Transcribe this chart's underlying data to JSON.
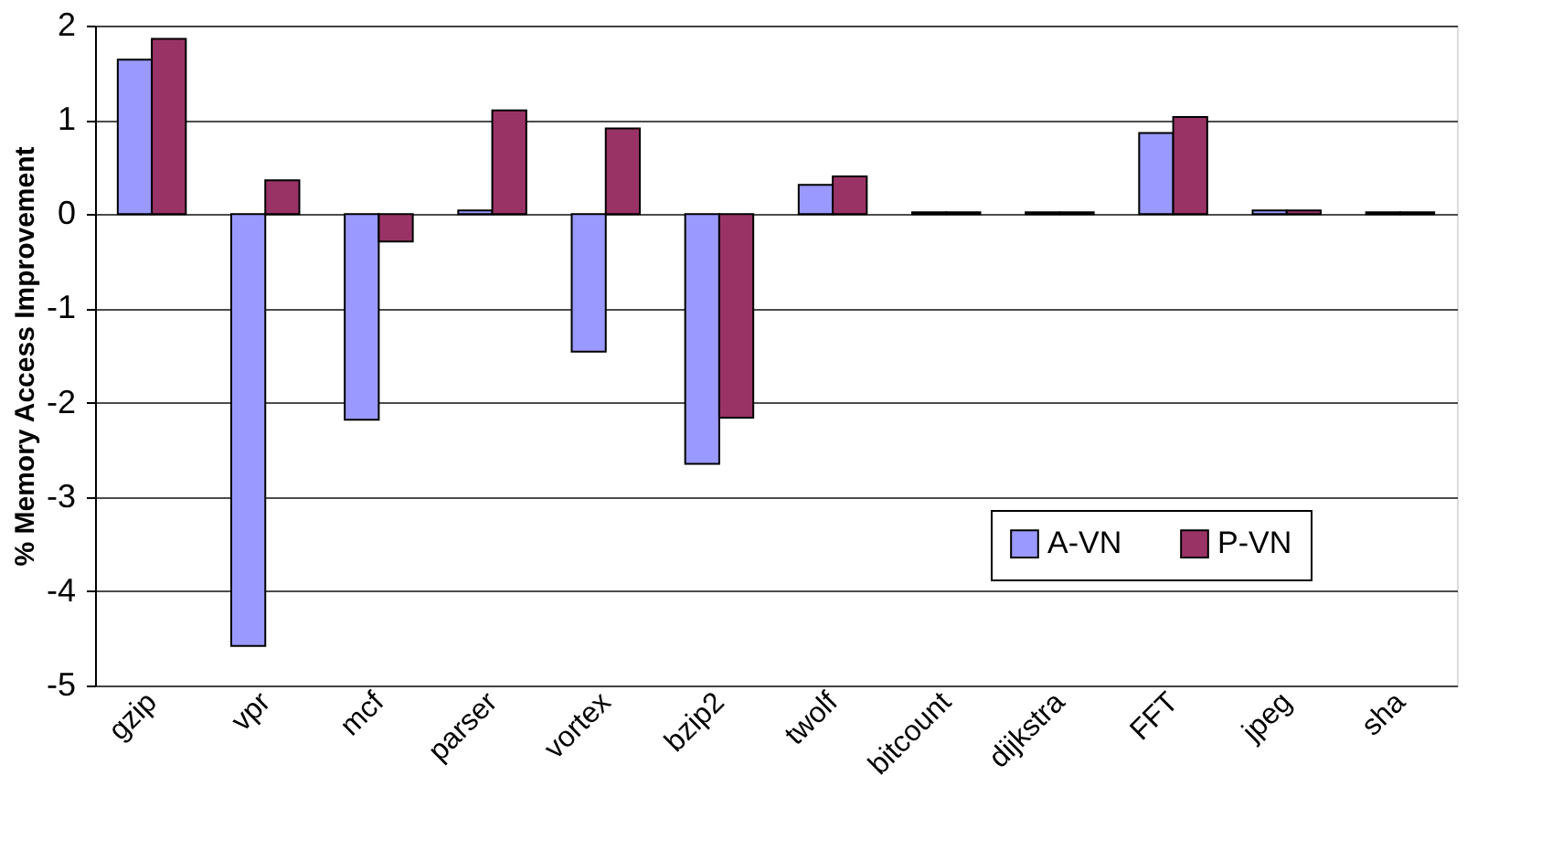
{
  "chart_data": {
    "type": "bar",
    "ylabel": "% Memory Access Improvement",
    "categories": [
      "gzip",
      "vpr",
      "mcf",
      "parser",
      "vortex",
      "bzip2",
      "twolf",
      "bitcount",
      "dijkstra",
      "FFT",
      "jpeg",
      "sha"
    ],
    "series": [
      {
        "name": "A-VN",
        "color": "#9999ff",
        "values": [
          1.64,
          -4.58,
          -2.18,
          0.04,
          -1.46,
          -2.65,
          0.31,
          0.02,
          0.02,
          0.86,
          0.04,
          0.02
        ]
      },
      {
        "name": "P-VN",
        "color": "#993366",
        "values": [
          1.86,
          0.36,
          -0.29,
          1.1,
          0.91,
          -2.16,
          0.4,
          0.02,
          0.02,
          1.03,
          0.04,
          0.02
        ]
      }
    ],
    "ylim": [
      -5,
      2
    ],
    "yticks": [
      -5,
      -4,
      -3,
      -2,
      -1,
      0,
      1,
      2
    ],
    "grid": "y",
    "legend": "bottom right"
  }
}
